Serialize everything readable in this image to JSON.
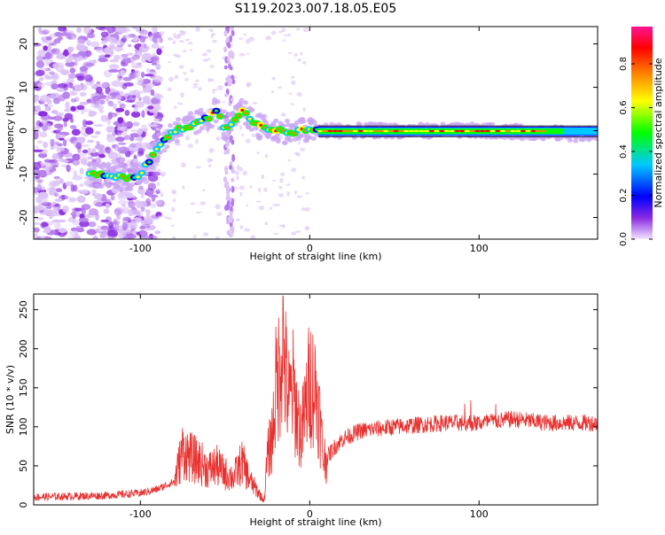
{
  "title": "S119.2023.007.18.05.E05",
  "chart_data": [
    {
      "type": "heatmap",
      "xlabel": "Height of straight line (km)",
      "ylabel": "Frequency (Hz)",
      "xlim": [
        -163,
        170
      ],
      "ylim": [
        -25,
        24
      ],
      "xticks": [
        -100,
        0,
        100
      ],
      "yticks": [
        -20,
        -10,
        0,
        10,
        20
      ],
      "colorbar": {
        "label": "Normalized spectral amplitude",
        "range": [
          0.0,
          0.97
        ],
        "ticks": [
          0.0,
          0.2,
          0.4,
          0.6,
          0.8
        ],
        "colormap": [
          "#f2e4ff",
          "#8a2be2",
          "#0000ff",
          "#00c8ff",
          "#00ff00",
          "#ffff00",
          "#ff8000",
          "#ff0000",
          "#ff1493"
        ]
      },
      "ridge": {
        "description_points_x": [
          -125,
          -115,
          -105,
          -100,
          -95,
          -88,
          -80,
          -72,
          -65,
          -60,
          -57,
          -55,
          -50,
          -45,
          -40,
          -36,
          -30,
          -25,
          -20,
          -15,
          -10,
          -5,
          0,
          20,
          60,
          100,
          140,
          170
        ],
        "description_points_y": [
          -10,
          -10.5,
          -11,
          -10,
          -7,
          -3,
          0,
          1,
          2,
          3,
          4,
          5,
          0,
          2,
          5,
          3,
          1,
          0.5,
          0,
          0,
          -0.5,
          0,
          0,
          0,
          0,
          0,
          -0.5,
          -1
        ]
      }
    },
    {
      "type": "line",
      "xlabel": "Height of straight line (km)",
      "ylabel": "SNR (10 * v/v)",
      "xlim": [
        -163,
        170
      ],
      "ylim": [
        0,
        270
      ],
      "xticks": [
        -100,
        0,
        100
      ],
      "yticks": [
        0,
        50,
        100,
        150,
        200,
        250
      ],
      "color": "#e8302e",
      "envelope_x": [
        -163,
        -120,
        -100,
        -90,
        -80,
        -75,
        -70,
        -65,
        -60,
        -55,
        -50,
        -45,
        -40,
        -35,
        -30,
        -27,
        -25,
        -22,
        -20,
        -18,
        -16,
        -14,
        -12,
        -10,
        -8,
        -5,
        -2,
        0,
        3,
        5,
        8,
        10,
        15,
        20,
        30,
        50,
        80,
        100,
        120,
        140,
        170
      ],
      "envelope_y": [
        10,
        12,
        15,
        20,
        30,
        70,
        60,
        55,
        45,
        50,
        40,
        35,
        55,
        30,
        15,
        5,
        60,
        90,
        150,
        170,
        220,
        160,
        130,
        150,
        120,
        90,
        130,
        160,
        150,
        130,
        60,
        60,
        75,
        85,
        95,
        100,
        105,
        105,
        110,
        105,
        105
      ]
    }
  ]
}
